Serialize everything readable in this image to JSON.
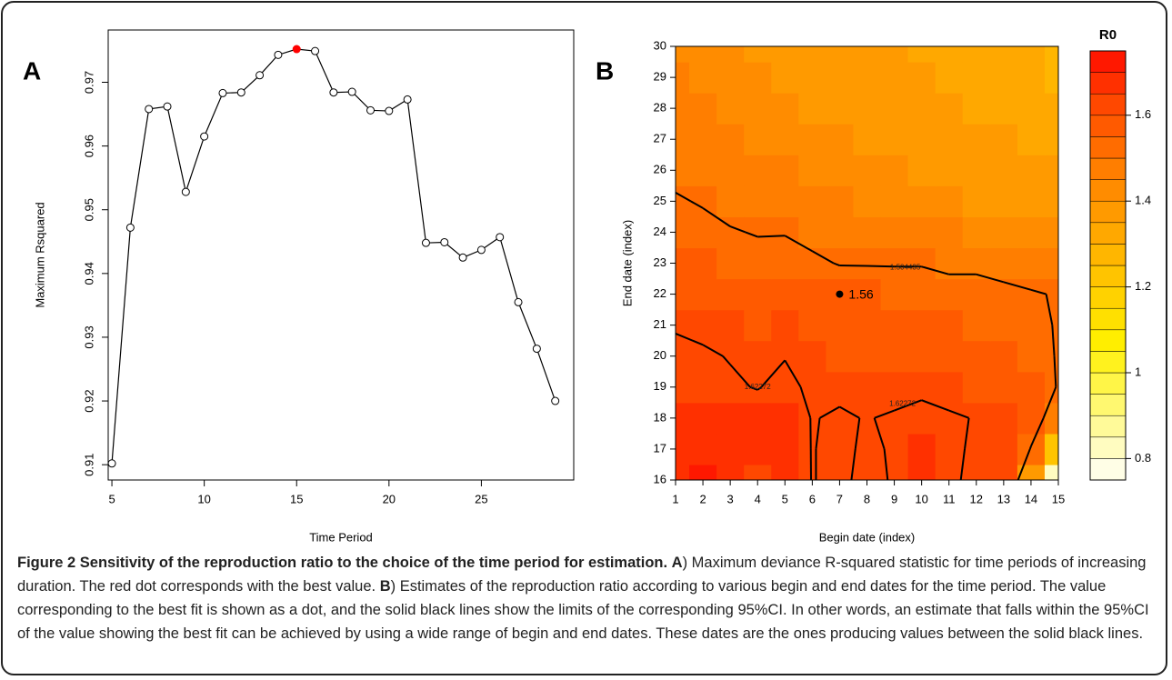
{
  "chart_data": [
    {
      "type": "line",
      "panel": "A",
      "x_label": "Time Period",
      "y_label": "Maximum Rsquared",
      "x": [
        5,
        6,
        7,
        8,
        9,
        10,
        11,
        12,
        13,
        14,
        15,
        16,
        17,
        18,
        19,
        20,
        21,
        22,
        23,
        24,
        25,
        26,
        27,
        28,
        29
      ],
      "values": [
        0.9102,
        0.9472,
        0.9658,
        0.9662,
        0.9528,
        0.9615,
        0.9683,
        0.9684,
        0.9711,
        0.9743,
        0.9752,
        0.9749,
        0.9684,
        0.9685,
        0.9656,
        0.9655,
        0.9673,
        0.9448,
        0.9449,
        0.9425,
        0.9437,
        0.9457,
        0.9355,
        0.9282,
        0.92
      ],
      "color": "#000000",
      "marker_colors": [
        "#ffffff",
        "#ffffff",
        "#ffffff",
        "#ffffff",
        "#ffffff",
        "#ffffff",
        "#ffffff",
        "#ffffff",
        "#ffffff",
        "#ffffff",
        "#ff0000",
        "#ffffff",
        "#ffffff",
        "#ffffff",
        "#ffffff",
        "#ffffff",
        "#ffffff",
        "#ffffff",
        "#ffffff",
        "#ffffff",
        "#ffffff",
        "#ffffff",
        "#ffffff",
        "#ffffff",
        "#ffffff"
      ],
      "xlim": [
        4.8,
        30.0
      ],
      "xticks": [
        5,
        10,
        15,
        20,
        25
      ],
      "ylim": [
        0.9076,
        0.9782
      ],
      "yticks": [
        0.91,
        0.92,
        0.93,
        0.94,
        0.95,
        0.96,
        0.97
      ]
    },
    {
      "type": "contour",
      "panel": "B",
      "x_label": "Begin date (index)",
      "y_label": "End date (index)",
      "x": [
        1,
        2,
        3,
        4,
        5,
        6,
        7,
        8,
        9,
        10,
        11,
        12,
        13,
        14,
        15
      ],
      "y": [
        16,
        17,
        18,
        19,
        20,
        21,
        22,
        23,
        24,
        25,
        26,
        27,
        28,
        29,
        30
      ],
      "z": [
        [
          1.68,
          1.7,
          1.66,
          1.64,
          1.68,
          1.62,
          1.64,
          1.6,
          1.63,
          1.68,
          1.64,
          1.6,
          1.62,
          1.4,
          0.8
        ],
        [
          1.67,
          1.68,
          1.66,
          1.65,
          1.67,
          1.62,
          1.64,
          1.61,
          1.63,
          1.67,
          1.64,
          1.61,
          1.62,
          1.5,
          1.2
        ],
        [
          1.65,
          1.66,
          1.66,
          1.65,
          1.66,
          1.62,
          1.63,
          1.62,
          1.63,
          1.64,
          1.63,
          1.62,
          1.62,
          1.55,
          1.45
        ],
        [
          1.64,
          1.64,
          1.63,
          1.62,
          1.64,
          1.61,
          1.61,
          1.6,
          1.6,
          1.61,
          1.6,
          1.59,
          1.58,
          1.55,
          1.5
        ],
        [
          1.63,
          1.63,
          1.62,
          1.6,
          1.62,
          1.6,
          1.59,
          1.58,
          1.58,
          1.58,
          1.57,
          1.56,
          1.55,
          1.53,
          1.5
        ],
        [
          1.62,
          1.61,
          1.6,
          1.59,
          1.6,
          1.58,
          1.57,
          1.56,
          1.56,
          1.56,
          1.55,
          1.54,
          1.53,
          1.52,
          1.5
        ],
        [
          1.59,
          1.58,
          1.57,
          1.56,
          1.57,
          1.56,
          1.56,
          1.55,
          1.54,
          1.54,
          1.53,
          1.53,
          1.52,
          1.51,
          1.5
        ],
        [
          1.56,
          1.55,
          1.54,
          1.53,
          1.54,
          1.52,
          1.5,
          1.5,
          1.5,
          1.5,
          1.49,
          1.49,
          1.48,
          1.47,
          1.46
        ],
        [
          1.53,
          1.52,
          1.51,
          1.5,
          1.5,
          1.48,
          1.47,
          1.47,
          1.46,
          1.46,
          1.45,
          1.44,
          1.43,
          1.42,
          1.41
        ],
        [
          1.51,
          1.5,
          1.48,
          1.47,
          1.47,
          1.46,
          1.45,
          1.44,
          1.43,
          1.42,
          1.41,
          1.4,
          1.39,
          1.38,
          1.37
        ],
        [
          1.49,
          1.48,
          1.46,
          1.45,
          1.45,
          1.44,
          1.43,
          1.42,
          1.41,
          1.4,
          1.39,
          1.38,
          1.37,
          1.36,
          1.35
        ],
        [
          1.47,
          1.46,
          1.45,
          1.44,
          1.43,
          1.42,
          1.41,
          1.4,
          1.39,
          1.38,
          1.37,
          1.36,
          1.35,
          1.34,
          1.33
        ],
        [
          1.46,
          1.45,
          1.44,
          1.42,
          1.41,
          1.4,
          1.39,
          1.38,
          1.37,
          1.36,
          1.35,
          1.34,
          1.33,
          1.32,
          1.31
        ],
        [
          1.45,
          1.44,
          1.43,
          1.41,
          1.4,
          1.39,
          1.38,
          1.37,
          1.36,
          1.35,
          1.34,
          1.33,
          1.32,
          1.31,
          1.29
        ],
        [
          1.44,
          1.43,
          1.42,
          1.4,
          1.39,
          1.38,
          1.37,
          1.36,
          1.35,
          1.34,
          1.33,
          1.32,
          1.31,
          1.3,
          1.28
        ]
      ],
      "contour_levels": [
        1.504435,
        1.62272
      ],
      "marker": {
        "x": 7,
        "y": 22,
        "value": 1.56
      },
      "xlim": [
        1,
        15
      ],
      "xticks": [
        1,
        2,
        3,
        4,
        5,
        6,
        7,
        8,
        9,
        10,
        11,
        12,
        13,
        14,
        15
      ],
      "ylim": [
        16,
        30
      ],
      "yticks": [
        16,
        17,
        18,
        19,
        20,
        21,
        22,
        23,
        24,
        25,
        26,
        27,
        28,
        29,
        30
      ],
      "colorbar": {
        "title": "R0",
        "zlim": [
          0.75,
          1.75
        ],
        "ticks": [
          0.8,
          1.0,
          1.2,
          1.4,
          1.6
        ],
        "colors": [
          "#fffee6",
          "#fffcc0",
          "#fffa99",
          "#fff870",
          "#fff547",
          "#fff21e",
          "#ffee00",
          "#ffe000",
          "#ffd200",
          "#ffc400",
          "#ffb600",
          "#ffa800",
          "#ff9a00",
          "#ff8c00",
          "#ff7e00",
          "#ff6c00",
          "#ff5a00",
          "#ff4800",
          "#ff3000",
          "#ff1800"
        ]
      }
    }
  ],
  "caption": {
    "title": "Figure 2 Sensitivity of the reproduction ratio to the choice of the time period for estimation.",
    "panel_a": "A",
    "text_a": ") Maximum deviance R-squared statistic for time periods of increasing duration. The red dot corresponds with the best value.",
    "panel_b": "B",
    "text_b": ") Estimates of the reproduction ratio according to various begin and end dates for the time period. The value corresponding to the best fit is shown as a dot, and the solid black lines show the limits of the corresponding 95%CI. In other words, an estimate that falls within the 95%CI of the value showing the best fit can be achieved by using a wide range of begin and end dates. These dates are the ones producing values between the solid black lines."
  }
}
